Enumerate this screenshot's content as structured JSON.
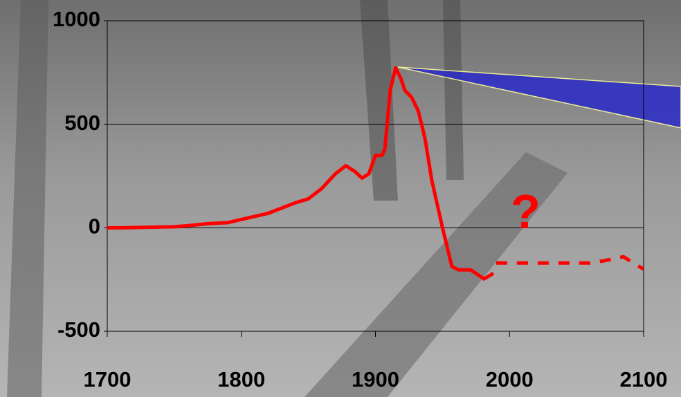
{
  "chart_data": {
    "type": "line",
    "xlim": [
      1700,
      2100
    ],
    "xticks": [
      1700,
      1800,
      1900,
      2000,
      2100
    ],
    "ylim": [
      -500,
      1000
    ],
    "yticks": [
      -500,
      0,
      500,
      1000
    ],
    "grid": true,
    "series": [
      {
        "color": "#ff0000",
        "dashed": false,
        "x": [
          1700,
          1710,
          1750,
          1760,
          1775,
          1790,
          1800,
          1820,
          1840,
          1850,
          1860,
          1870,
          1878,
          1885,
          1890,
          1895,
          1900,
          1905,
          1907,
          1911,
          1915,
          1919,
          1922,
          1927,
          1932,
          1937,
          1942,
          1950,
          1957,
          1962,
          1971,
          1981,
          1988
        ],
        "values": [
          0,
          0,
          5,
          10,
          20,
          25,
          40,
          70,
          120,
          140,
          190,
          260,
          300,
          270,
          240,
          260,
          350,
          350,
          380,
          663,
          773,
          720,
          663,
          630,
          563,
          430,
          230,
          0,
          -187,
          -203,
          -203,
          -247,
          -220
        ]
      },
      {
        "color": "#ff0000",
        "dashed": true,
        "x": [
          1990,
          2060,
          2070,
          2085,
          2100
        ],
        "values": [
          -170,
          -170,
          -160,
          -140,
          -200
        ]
      }
    ],
    "annotations": [
      {
        "text": "?",
        "x": 2012,
        "y": 60
      }
    ]
  }
}
